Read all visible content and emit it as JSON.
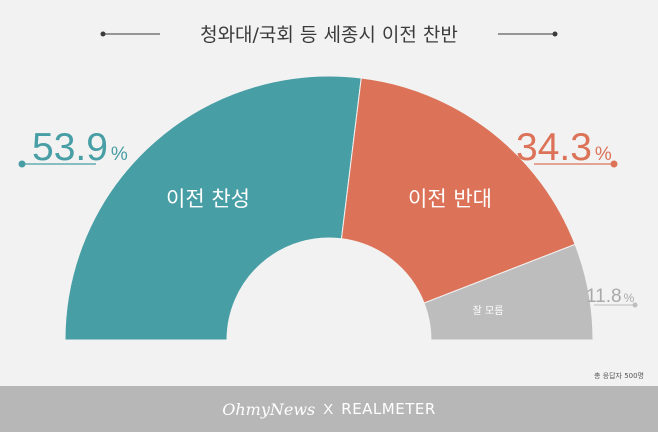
{
  "title": "청와대/국회 등 세종시 이전 찬반",
  "note": "총 응답자 500명",
  "footer": {
    "brand1": "OhmyNews",
    "separator": "X",
    "brand2": "REALMETER"
  },
  "colors": {
    "favor": "#479ea5",
    "oppose": "#dc7358",
    "unknown": "#bdbdbd",
    "pct_unknown": "#a9a9a9"
  },
  "chart_data": {
    "type": "pie",
    "shape": "half-donut",
    "title": "청와대/국회 등 세종시 이전 찬반",
    "unit": "%",
    "slices": [
      {
        "label": "이전 찬성",
        "value": 53.9,
        "display": "53.9",
        "color": "#479ea5"
      },
      {
        "label": "이전 반대",
        "value": 34.3,
        "display": "34.3",
        "color": "#dc7358"
      },
      {
        "label": "잘 모름",
        "value": 11.8,
        "display": "11.8",
        "color": "#bdbdbd"
      }
    ]
  }
}
